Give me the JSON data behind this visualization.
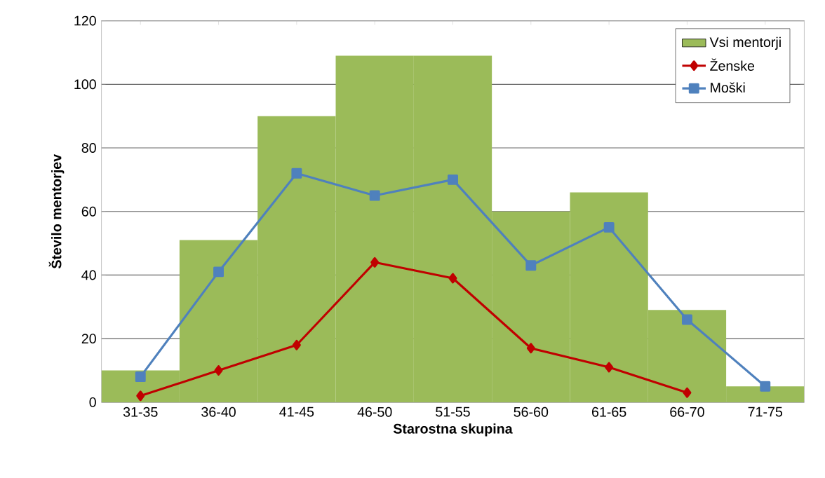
{
  "chart_data": {
    "type": "bar",
    "xlabel": "Starostna skupina",
    "ylabel": "Število mentorjev",
    "categories": [
      "31-35",
      "36-40",
      "41-45",
      "46-50",
      "51-55",
      "56-60",
      "61-65",
      "66-70",
      "71-75"
    ],
    "series": [
      {
        "name": "Vsi mentorji",
        "color": "#9bbb59",
        "values": [
          10,
          51,
          90,
          109,
          109,
          60,
          66,
          29,
          5
        ]
      },
      {
        "name": "Ženske",
        "type": "line",
        "marker": "diamond",
        "color": "#c00000",
        "values": [
          2,
          10,
          18,
          44,
          39,
          17,
          11,
          3,
          null
        ]
      },
      {
        "name": "Moški",
        "type": "line",
        "marker": "square",
        "color": "#4f81bd",
        "values": [
          8,
          41,
          72,
          65,
          70,
          43,
          55,
          26,
          5
        ]
      }
    ],
    "ylim": [
      0,
      120
    ],
    "yticks": [
      0,
      20,
      40,
      60,
      80,
      100,
      120
    ],
    "grid": "y",
    "legend": "top right"
  }
}
